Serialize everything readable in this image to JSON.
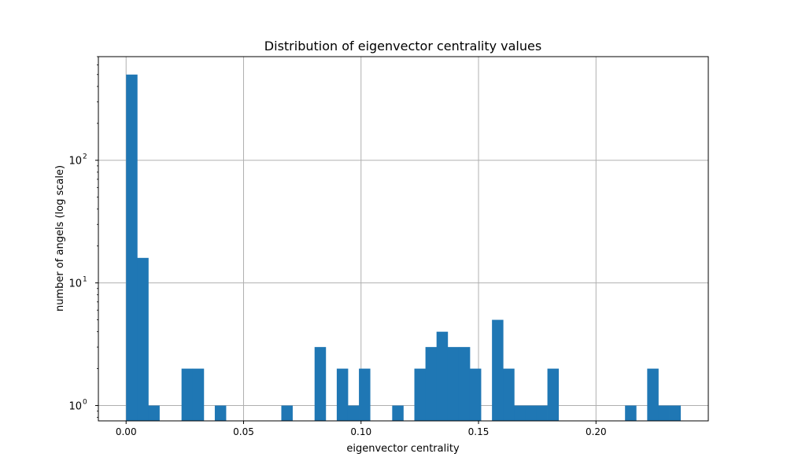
{
  "chart_data": {
    "type": "bar",
    "title": "Distribution of eigenvector centrality values",
    "xlabel": "eigenvector centrality",
    "ylabel": "number of angels (log scale)",
    "y_scale": "log",
    "grid": true,
    "bar_color": "#1f77b4",
    "xlim": [
      -0.0118,
      0.2478
    ],
    "ylim": [
      0.75,
      700
    ],
    "x_ticks": [
      {
        "value": 0.0,
        "label": "0.00"
      },
      {
        "value": 0.05,
        "label": "0.05"
      },
      {
        "value": 0.1,
        "label": "0.10"
      },
      {
        "value": 0.15,
        "label": "0.15"
      },
      {
        "value": 0.2,
        "label": "0.20"
      }
    ],
    "y_ticks": [
      {
        "value": 1,
        "base": "10",
        "exp": "0"
      },
      {
        "value": 10,
        "base": "10",
        "exp": "1"
      },
      {
        "value": 100,
        "base": "10",
        "exp": "2"
      }
    ],
    "bins": {
      "start": 0.0,
      "width": 0.004719,
      "counts": [
        500,
        16,
        1,
        0,
        0,
        2,
        2,
        0,
        1,
        0,
        0,
        0,
        0,
        0,
        1,
        0,
        0,
        3,
        0,
        2,
        1,
        2,
        0,
        0,
        1,
        0,
        2,
        3,
        4,
        3,
        3,
        2,
        0,
        5,
        2,
        1,
        1,
        1,
        2,
        0,
        0,
        0,
        0,
        0,
        0,
        1,
        0,
        2,
        1,
        1
      ]
    }
  }
}
